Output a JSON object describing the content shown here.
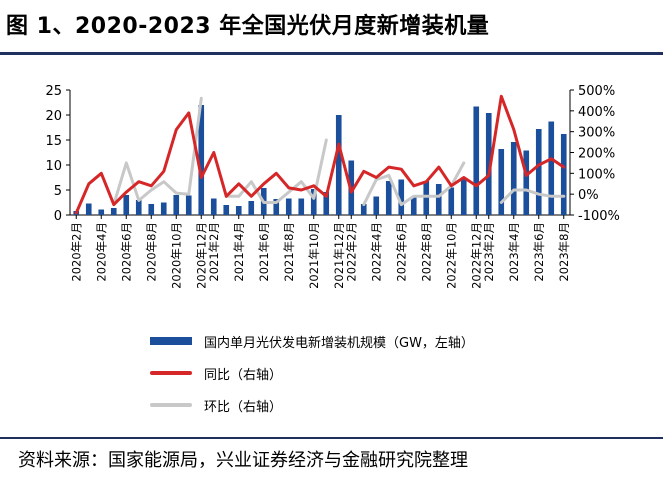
{
  "title": "图 1、2020-2023 年全国光伏月度新增装机量",
  "source": "资料来源：国家能源局，兴业证券经济与金融研究院整理",
  "colors": {
    "bar": "#1b4f9b",
    "yoy": "#d62728",
    "mom": "#c8c8c8",
    "rule": "#1f2f5e"
  },
  "chart_data": {
    "type": "bar",
    "categories": [
      "2020年2月",
      "2020年3月",
      "2020年4月",
      "2020年5月",
      "2020年6月",
      "2020年7月",
      "2020年8月",
      "2020年9月",
      "2020年10月",
      "2020年11月",
      "2020年12月",
      "2021年2月",
      "2021年3月",
      "2021年4月",
      "2021年5月",
      "2021年6月",
      "2021年7月",
      "2021年8月",
      "2021年9月",
      "2021年10月",
      "2021年11月",
      "2021年12月",
      "2022年2月",
      "2022年3月",
      "2022年4月",
      "2022年5月",
      "2022年6月",
      "2022年7月",
      "2022年8月",
      "2022年9月",
      "2022年10月",
      "2022年11月",
      "2022年12月",
      "2023年2月",
      "2023年3月",
      "2023年4月",
      "2023年5月",
      "2023年6月",
      "2023年7月",
      "2023年8月"
    ],
    "x_tick_labels": [
      "2020年2月",
      "2020年4月",
      "2020年6月",
      "2020年8月",
      "2020年10月",
      "2020年12月",
      "2021年2月",
      "2021年4月",
      "2021年6月",
      "2021年8月",
      "2021年10月",
      "2021年12月",
      "2022年2月",
      "2022年4月",
      "2022年6月",
      "2022年8月",
      "2022年10月",
      "2022年12月",
      "2023年2月",
      "2023年4月",
      "2023年6月",
      "2023年8月"
    ],
    "series": [
      {
        "name": "国内单月光伏发电新增装机规模（GW，左轴）",
        "axis": "left",
        "type": "bar",
        "values": [
          0.8,
          2.3,
          1.1,
          1.4,
          4.0,
          3.0,
          2.2,
          2.5,
          4.0,
          3.9,
          22.0,
          3.3,
          2.0,
          1.8,
          2.8,
          5.4,
          3.2,
          3.3,
          3.3,
          5.2,
          4.6,
          20.0,
          10.9,
          2.2,
          3.7,
          6.8,
          7.1,
          3.7,
          6.8,
          6.2,
          5.5,
          7.5,
          21.7,
          20.4,
          13.2,
          14.6,
          12.9,
          17.2,
          18.7,
          16.2
        ]
      },
      {
        "name": "同比（右轴）",
        "axis": "right",
        "type": "line",
        "values": [
          -90,
          50,
          100,
          -50,
          10,
          60,
          40,
          110,
          310,
          390,
          80,
          200,
          -10,
          50,
          -10,
          50,
          100,
          30,
          20,
          40,
          -10,
          240,
          10,
          110,
          80,
          130,
          120,
          40,
          60,
          130,
          40,
          80,
          40,
          90,
          470,
          310,
          90,
          140,
          170,
          130
        ]
      },
      {
        "name": "环比（右轴）",
        "axis": "right",
        "type": "line",
        "values": [
          null,
          null,
          null,
          -50,
          150,
          -30,
          20,
          60,
          5,
          0,
          460,
          null,
          -10,
          -10,
          60,
          -40,
          -40,
          10,
          60,
          -20,
          260,
          null,
          null,
          -50,
          70,
          90,
          -50,
          -10,
          -10,
          -10,
          40,
          150,
          null,
          null,
          -40,
          20,
          20,
          0,
          -10,
          -10
        ]
      }
    ],
    "left_axis": {
      "ylim": [
        0,
        25
      ],
      "ticks": [
        "0",
        "5",
        "10",
        "15",
        "20",
        "25"
      ]
    },
    "right_axis": {
      "ylim": [
        -100,
        500
      ],
      "ticks": [
        "-100%",
        "0%",
        "100%",
        "200%",
        "300%",
        "400%",
        "500%"
      ]
    },
    "legend": [
      {
        "label": "国内单月光伏发电新增装机规模（GW，左轴）"
      },
      {
        "label": "同比（右轴）"
      },
      {
        "label": "环比（右轴）"
      }
    ],
    "legend_position": "bottom"
  }
}
